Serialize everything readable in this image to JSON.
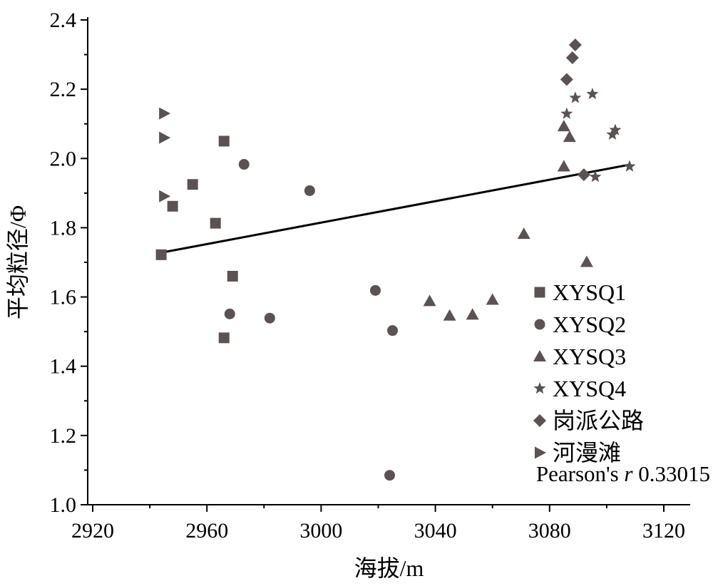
{
  "chart_data": {
    "type": "scatter",
    "xlabel": "海拔/m",
    "ylabel": "平均粒径/Φ",
    "xlim": [
      2920,
      3120
    ],
    "ylim": [
      1.0,
      2.4
    ],
    "x_ticks": [
      "2920",
      "2960",
      "3000",
      "3040",
      "3080",
      "3120"
    ],
    "y_ticks": [
      "1.0",
      "1.2",
      "1.4",
      "1.6",
      "1.8",
      "2.0",
      "2.2",
      "2.4"
    ],
    "x_tick_values": [
      2920,
      2960,
      3000,
      3040,
      3080,
      3120
    ],
    "y_tick_values": [
      1.0,
      1.2,
      1.4,
      1.6,
      1.8,
      2.0,
      2.2,
      2.4
    ],
    "grid": false,
    "legend_position": "bottom-right",
    "series": [
      {
        "name": "XYSQ1",
        "marker": "square",
        "points": [
          [
            2944,
            1.722
          ],
          [
            2948,
            1.862
          ],
          [
            2955,
            1.925
          ],
          [
            2963,
            1.813
          ],
          [
            2966,
            2.05
          ],
          [
            2966,
            1.482
          ],
          [
            2969,
            1.66
          ]
        ]
      },
      {
        "name": "XYSQ2",
        "marker": "circle",
        "points": [
          [
            2968,
            1.551
          ],
          [
            2973,
            1.983
          ],
          [
            2982,
            1.539
          ],
          [
            2996,
            1.907
          ],
          [
            3019,
            1.619
          ],
          [
            3024,
            1.085
          ],
          [
            3025,
            1.503
          ]
        ]
      },
      {
        "name": "XYSQ3",
        "marker": "triangle",
        "points": [
          [
            3038,
            1.588
          ],
          [
            3045,
            1.546
          ],
          [
            3053,
            1.549
          ],
          [
            3060,
            1.592
          ],
          [
            3071,
            1.782
          ],
          [
            3085,
            2.093
          ],
          [
            3085,
            1.977
          ],
          [
            3087,
            2.062
          ],
          [
            3093,
            1.701
          ]
        ]
      },
      {
        "name": "XYSQ4",
        "marker": "star",
        "points": [
          [
            3086,
            2.129
          ],
          [
            3089,
            2.175
          ],
          [
            3095,
            2.186
          ],
          [
            3096,
            1.947
          ],
          [
            3102,
            2.069
          ],
          [
            3103,
            2.082
          ],
          [
            3108,
            1.977
          ]
        ]
      },
      {
        "name": "岗派公路",
        "marker": "diamond",
        "points": [
          [
            3086,
            2.228
          ],
          [
            3088,
            2.291
          ],
          [
            3089,
            2.328
          ],
          [
            3092,
            1.953
          ]
        ]
      },
      {
        "name": "河漫滩",
        "marker": "triangle-right",
        "points": [
          [
            2945,
            2.13
          ],
          [
            2945,
            2.06
          ],
          [
            2945,
            1.891
          ]
        ]
      }
    ],
    "fit_line": {
      "x": [
        2944,
        3108
      ],
      "y": [
        1.728,
        1.982
      ]
    },
    "annotation": {
      "prefix": "Pearson's ",
      "variable": "r",
      "value": " 0.33015"
    },
    "colors": {
      "marker": "#5b5253",
      "line": "#000000",
      "axis": "#000000"
    }
  }
}
